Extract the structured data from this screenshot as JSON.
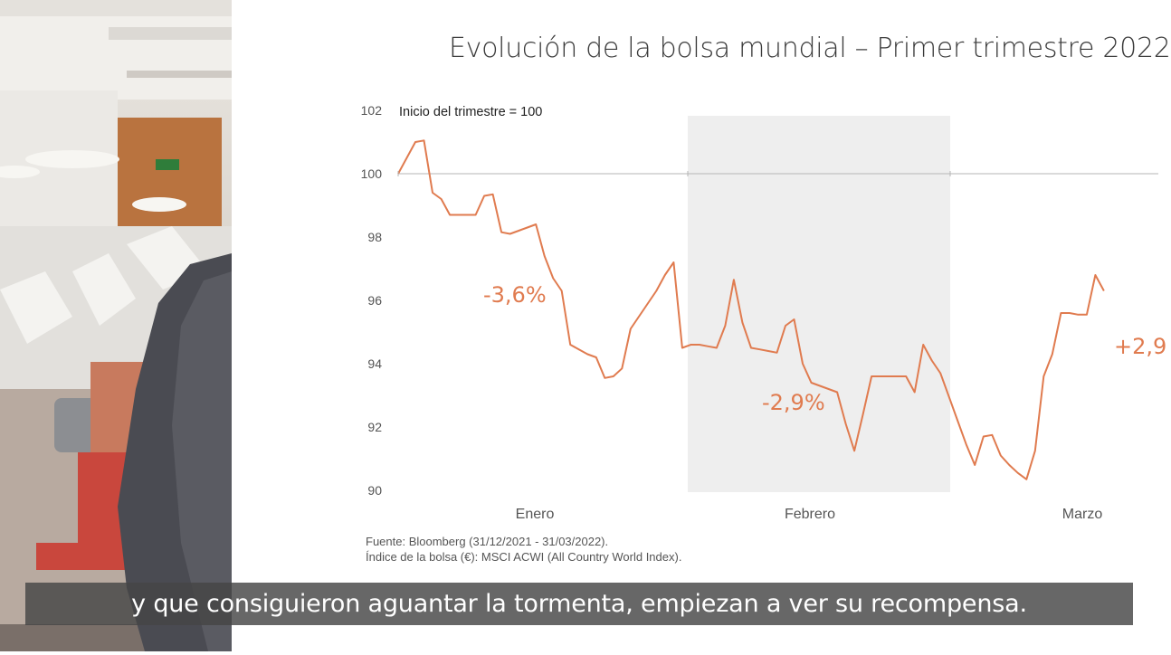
{
  "chart_data": {
    "type": "line",
    "title": "Evolución de la bolsa mundial – Primer trimestre 2022",
    "annotation_base": "Inicio del trimestre = 100",
    "ylim": [
      90,
      102
    ],
    "y_ticks": [
      "102",
      "100",
      "98",
      "96",
      "94",
      "92",
      "90"
    ],
    "x_labels": [
      "Enero",
      "Febrero",
      "Marzo"
    ],
    "reference_line": 100,
    "shaded_period": "Febrero",
    "series": [
      {
        "color": "#e07b4f",
        "values": [
          100.0,
          100.5,
          101.0,
          101.05,
          99.4,
          99.2,
          98.7,
          98.7,
          98.7,
          98.7,
          99.3,
          99.35,
          98.15,
          98.1,
          98.2,
          98.3,
          98.4,
          97.4,
          96.7,
          96.3,
          94.6,
          94.45,
          94.3,
          94.2,
          93.55,
          93.6,
          93.85,
          95.1,
          95.5,
          95.9,
          96.3,
          96.8,
          97.2,
          94.5,
          94.6,
          94.6,
          94.55,
          94.5,
          95.2,
          96.65,
          95.3,
          94.5,
          94.45,
          94.4,
          94.35,
          95.2,
          95.4,
          94.0,
          93.4,
          93.3,
          93.2,
          93.1,
          92.1,
          91.25,
          92.4,
          93.6,
          93.6,
          93.6,
          93.6,
          93.6,
          93.1,
          94.6,
          94.1,
          93.7,
          92.95,
          92.2,
          91.45,
          90.8,
          91.7,
          91.75,
          91.1,
          90.8,
          90.55,
          90.35,
          91.25,
          93.6,
          94.3,
          95.6,
          95.6,
          95.55,
          95.55,
          96.8,
          96.3
        ]
      }
    ],
    "period_labels": [
      "-3,6%",
      "-2,9%",
      "+2,9"
    ],
    "source_lines": [
      "Fuente: Bloomberg (31/12/2021 - 31/03/2022).",
      "Índice de la bolsa (€): MSCI ACWI (All Country World Index)."
    ]
  },
  "subtitle": "y que consiguieron aguantar la tormenta, empiezan a ver su recompensa.",
  "colors": {
    "line": "#e07b4f",
    "shade": "#eeeeee",
    "subtitle_bg": "#464646"
  }
}
